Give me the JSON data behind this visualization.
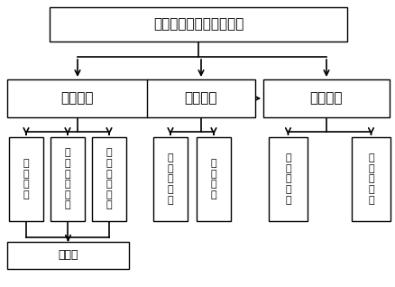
{
  "title": "检测中心计算机监测软件",
  "level2_labels": [
    "数据采集",
    "数据处理",
    "智能预测"
  ],
  "level3_left_labels": [
    "通\n信\n模\n块",
    "实\n时\n数\n据\n处\n理",
    "历\n史\n数\n据\n处\n理"
  ],
  "level3_mid_labels": [
    "数\n据\n预\n处\n理",
    "实\n时\n显\n示"
  ],
  "level3_right_labels": [
    "单\n节\n点\n预\n测",
    "多\n节\n点\n预\n测"
  ],
  "level4_label": "数据库",
  "box_facecolor": "#ffffff",
  "box_edgecolor": "#000000",
  "arrow_color": "#000000",
  "bg_color": "#ffffff",
  "fontsize_title": 11,
  "fontsize_l2": 11,
  "fontsize_l3": 8,
  "fontsize_l4": 9
}
